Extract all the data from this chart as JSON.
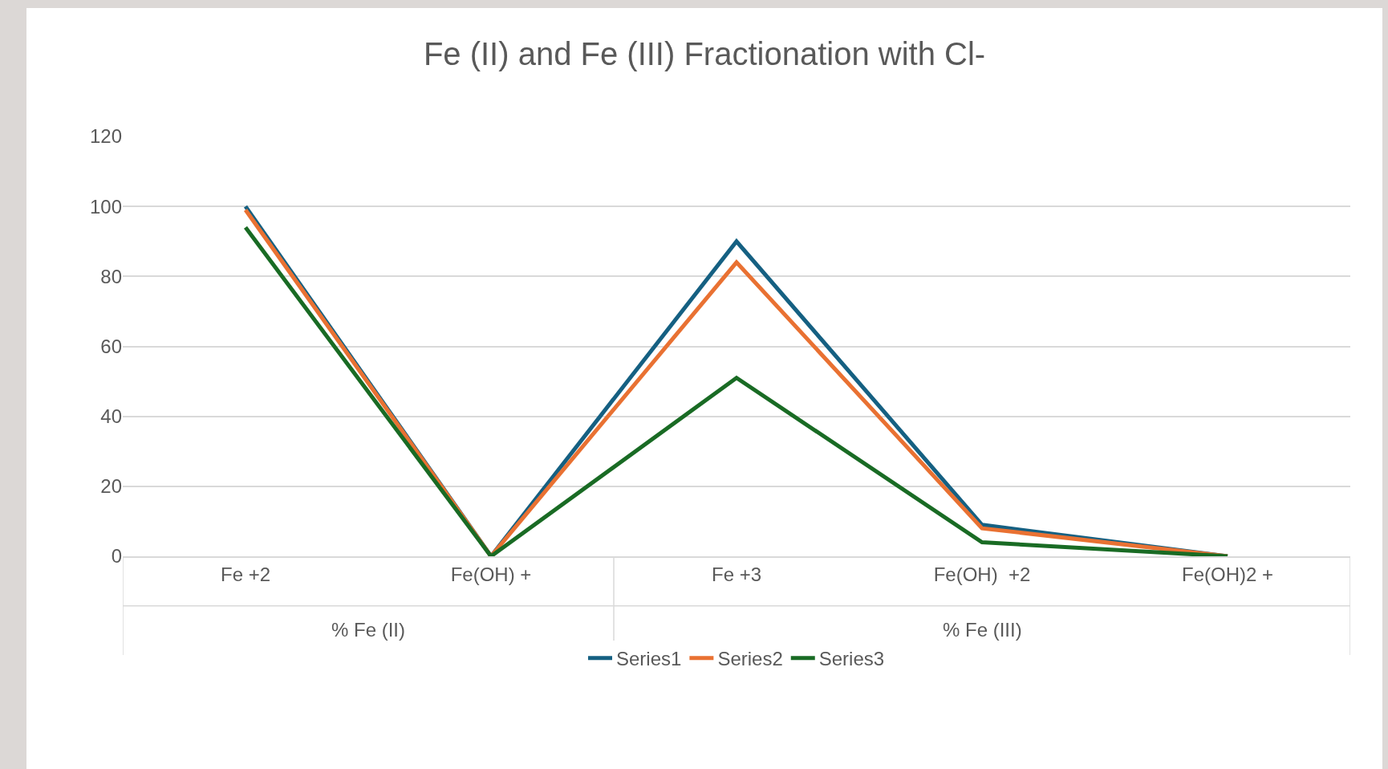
{
  "chart_data": {
    "type": "line",
    "title": "Fe (II) and Fe (III) Fractionation with Cl-",
    "categories": [
      "Fe +2",
      "Fe(OH) +",
      "Fe +3",
      "Fe(OH)  +2",
      "Fe(OH)2 +"
    ],
    "series": [
      {
        "name": "Series1",
        "color": "#156082",
        "values": [
          100,
          0,
          90,
          9,
          0
        ]
      },
      {
        "name": "Series2",
        "color": "#e97132",
        "values": [
          99,
          0,
          84,
          8,
          0
        ]
      },
      {
        "name": "Series3",
        "color": "#196b24",
        "values": [
          94,
          0,
          51,
          4,
          0
        ]
      }
    ],
    "annotations": [
      "% Fe (II)",
      "% Fe (III)"
    ],
    "ylim": [
      0,
      120
    ],
    "yticks": [
      0,
      20,
      40,
      60,
      80,
      100,
      120
    ],
    "grid": "y",
    "legend": "bottom",
    "marker": "none",
    "line_style": "solid"
  }
}
